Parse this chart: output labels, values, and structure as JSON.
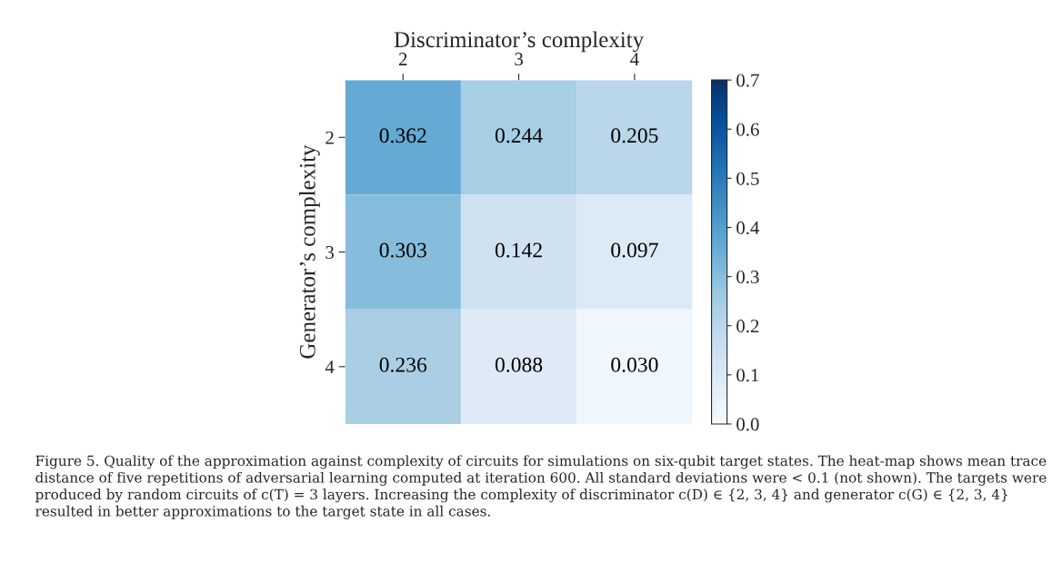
{
  "chart_data": {
    "type": "heatmap",
    "xlabel": "Discriminator’s complexity",
    "ylabel": "Generator’s complexity",
    "categories": [
      "2",
      "3",
      "4"
    ],
    "y_categories": [
      "2",
      "3",
      "4"
    ],
    "cells": [
      [
        0.362,
        0.244,
        0.205
      ],
      [
        0.303,
        0.142,
        0.097
      ],
      [
        0.236,
        0.088,
        0.03
      ]
    ],
    "cell_labels": [
      [
        "0.362",
        "0.244",
        "0.205"
      ],
      [
        "0.303",
        "0.142",
        "0.097"
      ],
      [
        "0.236",
        "0.088",
        "0.030"
      ]
    ],
    "clim": [
      0,
      0.7
    ],
    "cticks": [
      {
        "value": 0,
        "label": "0.0"
      },
      0.1,
      0.2,
      0.3,
      0.4,
      0.5,
      0.6,
      0.7
    ],
    "annotations": [
      "Figure 5. Quality of the approximation against complexity of circuits for simulations on six-qubit target states. The heat-map shows mean trace distance of five repetitions of adversarial learning computed at iteration 600. All standard deviations were < 0.1 (not shown). The targets were produced by random circuits of c(T) = 3 layers. Increasing the complexity of discriminator c(D) ∈ {2, 3, 4} and generator c(G) ∈ {2, 3, 4} resulted in better approximations to the target state in all cases."
    ]
  }
}
